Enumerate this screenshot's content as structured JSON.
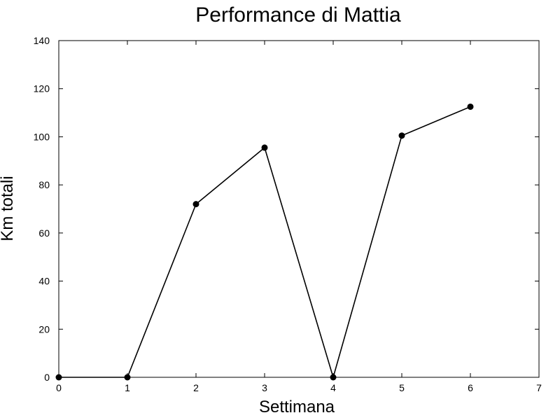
{
  "chart_data": {
    "type": "line",
    "title": "Performance di Mattia",
    "xlabel": "Settimana",
    "ylabel": "Km totali",
    "xlim": [
      0,
      7
    ],
    "ylim": [
      0,
      140
    ],
    "xticks": [
      0,
      1,
      2,
      3,
      4,
      5,
      6,
      7
    ],
    "yticks": [
      0,
      20,
      40,
      60,
      80,
      100,
      120,
      140
    ],
    "grid": false,
    "series": [
      {
        "x": [
          0,
          1,
          2,
          3,
          4,
          5,
          6
        ],
        "y": [
          0,
          0,
          72,
          95.5,
          0,
          100.5,
          112.5
        ],
        "color": "#000000",
        "marker": "circle"
      }
    ]
  }
}
